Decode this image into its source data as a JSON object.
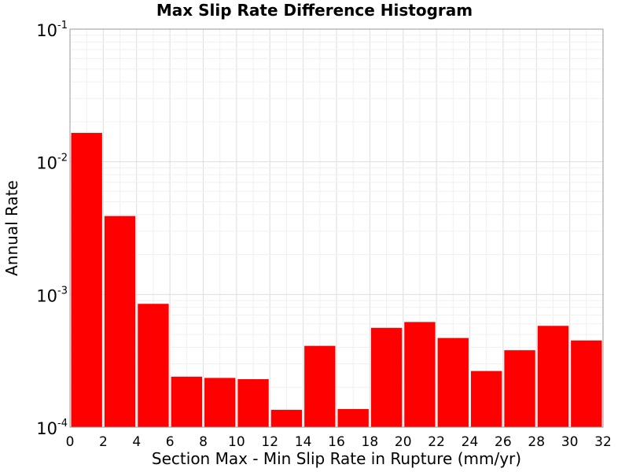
{
  "chart_data": {
    "type": "bar",
    "title": "Max Slip Rate Difference Histogram",
    "xlabel": "Section Max - Min Slip Rate in Rupture (mm/yr)",
    "ylabel": "Annual Rate",
    "xlim": [
      0,
      32
    ],
    "ylim": [
      0.0001,
      0.1
    ],
    "yscale": "log",
    "grid": true,
    "bar_color": "#ff0000",
    "bin_width": 2,
    "x_ticks": [
      "0",
      "2",
      "4",
      "6",
      "8",
      "10",
      "12",
      "14",
      "16",
      "18",
      "20",
      "22",
      "24",
      "26",
      "28",
      "30",
      "32"
    ],
    "y_ticks": [
      {
        "base": "10",
        "exp": "-4"
      },
      {
        "base": "10",
        "exp": "-3"
      },
      {
        "base": "10",
        "exp": "-2"
      },
      {
        "base": "10",
        "exp": "-1"
      }
    ],
    "bins": [
      {
        "x": 1,
        "value": 0.0165
      },
      {
        "x": 3,
        "value": 0.0039
      },
      {
        "x": 5,
        "value": 0.00085
      },
      {
        "x": 7,
        "value": 0.00024
      },
      {
        "x": 9,
        "value": 0.000235
      },
      {
        "x": 11,
        "value": 0.00023
      },
      {
        "x": 13,
        "value": 0.000135
      },
      {
        "x": 15,
        "value": 0.00041
      },
      {
        "x": 17,
        "value": 0.000137
      },
      {
        "x": 19,
        "value": 0.00056
      },
      {
        "x": 21,
        "value": 0.00062
      },
      {
        "x": 23,
        "value": 0.00047
      },
      {
        "x": 25,
        "value": 0.000265
      },
      {
        "x": 27,
        "value": 0.00038
      },
      {
        "x": 29,
        "value": 0.00058
      },
      {
        "x": 31,
        "value": 0.00045
      }
    ]
  }
}
